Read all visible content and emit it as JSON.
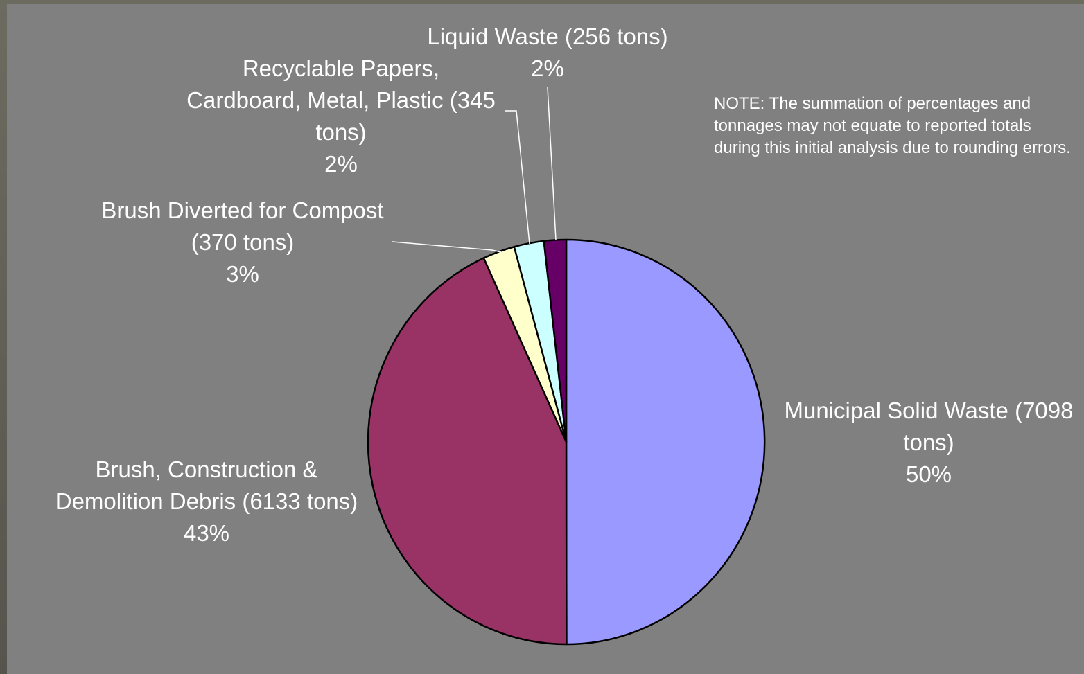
{
  "note": "NOTE: The summation of percentages and tonnages may not equate to reported totals during this initial analysis due to rounding errors.",
  "chart_data": {
    "type": "pie",
    "title": "",
    "slices": [
      {
        "category": "Municipal Solid Waste",
        "tons": 7098,
        "percent": 50,
        "color": "#9999ff",
        "label_lines": [
          "Municipal Solid Waste (7098",
          "tons)",
          "50%"
        ]
      },
      {
        "category": "Brush, Construction & Demolition Debris",
        "tons": 6133,
        "percent": 43,
        "color": "#993366",
        "label_lines": [
          "Brush, Construction &",
          "Demolition Debris (6133 tons)",
          "43%"
        ]
      },
      {
        "category": "Brush Diverted for Compost",
        "tons": 370,
        "percent": 3,
        "color": "#ffffcc",
        "label_lines": [
          "Brush Diverted for Compost",
          "(370 tons)",
          "3%"
        ]
      },
      {
        "category": "Recyclable Papers, Cardboard, Metal, Plastic",
        "tons": 345,
        "percent": 2,
        "color": "#ccffff",
        "label_lines": [
          "Recyclable Papers,",
          "Cardboard, Metal, Plastic (345",
          "tons)",
          "2%"
        ]
      },
      {
        "category": "Liquid Waste",
        "tons": 256,
        "percent": 2,
        "color": "#660066",
        "label_lines": [
          "Liquid Waste (256 tons)",
          "2%"
        ]
      }
    ]
  }
}
